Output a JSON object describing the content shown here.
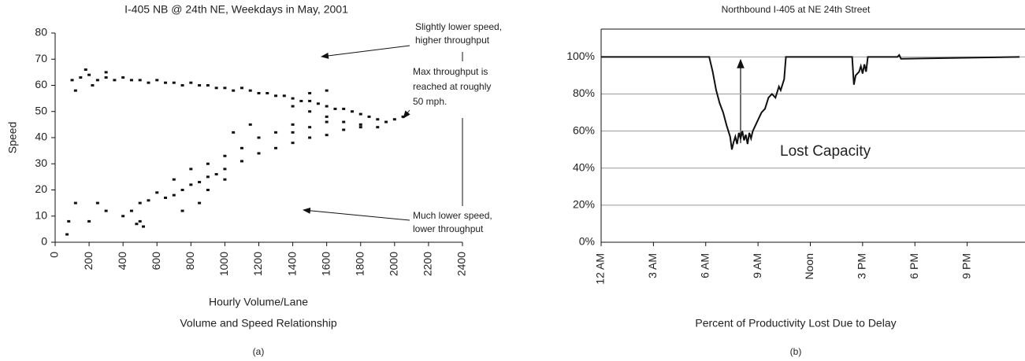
{
  "chart_data": [
    {
      "type": "scatter",
      "title": "I-405 NB @ 24th NE, Weekdays in May, 2001",
      "x_label": "Hourly Volume/Lane",
      "y_label": "Speed",
      "subtitle": "Volume and Speed Relationship",
      "caption": "(a)",
      "annotations": [
        "Slightly lower speed,",
        "higher throughput",
        "Max throughput is",
        "reached at roughly",
        "50 mph.",
        "Much lower speed,",
        "lower throughput"
      ],
      "color": "#111111",
      "xlim": [
        0,
        2400
      ],
      "ylim": [
        0,
        80
      ],
      "xticks": [
        0,
        200,
        400,
        600,
        800,
        1000,
        1200,
        1400,
        1600,
        1800,
        2000,
        2200,
        2400
      ],
      "yticks": [
        0,
        10,
        20,
        30,
        40,
        50,
        60,
        70,
        80
      ],
      "x": [
        100,
        150,
        200,
        250,
        300,
        350,
        400,
        450,
        500,
        550,
        600,
        650,
        700,
        750,
        800,
        850,
        900,
        950,
        1000,
        1050,
        1100,
        1150,
        1200,
        1250,
        1300,
        1350,
        1400,
        1450,
        1500,
        1550,
        1600,
        1650,
        1700,
        1750,
        1800,
        1850,
        1900,
        1950,
        2000,
        2050,
        120,
        180,
        220,
        300,
        1400,
        1500,
        1600,
        1700,
        1800,
        1900,
        1600,
        1500,
        1800,
        1700,
        1600,
        1500,
        1400,
        1300,
        1200,
        1100,
        1000,
        950,
        900,
        850,
        800,
        750,
        700,
        650,
        600,
        550,
        500,
        450,
        500,
        520,
        480,
        400,
        200,
        120,
        80,
        70,
        250,
        300,
        1200,
        1100,
        1000,
        900,
        1300,
        1400,
        800,
        700,
        1500,
        1000,
        850,
        750,
        1600,
        1400,
        900,
        1050,
        1150
      ],
      "y": [
        62,
        63,
        64,
        62,
        63,
        62,
        63,
        62,
        62,
        61,
        62,
        61,
        61,
        60,
        61,
        60,
        60,
        59,
        59,
        58,
        59,
        58,
        57,
        57,
        56,
        56,
        55,
        54,
        54,
        53,
        52,
        51,
        51,
        50,
        49,
        48,
        47,
        46,
        47,
        48,
        58,
        66,
        60,
        65,
        52,
        50,
        48,
        46,
        45,
        44,
        58,
        57,
        44,
        43,
        41,
        40,
        38,
        36,
        34,
        31,
        28,
        26,
        25,
        23,
        22,
        20,
        18,
        17,
        19,
        16,
        15,
        12,
        8,
        6,
        7,
        10,
        8,
        15,
        8,
        3,
        15,
        12,
        40,
        36,
        33,
        30,
        42,
        45,
        28,
        24,
        44,
        24,
        15,
        12,
        46,
        42,
        20,
        42,
        45
      ]
    },
    {
      "type": "line",
      "title": "Northbound I-405 at NE 24th Street",
      "subtitle": "Percent of Productivity Lost Due to Delay",
      "caption": "(b)",
      "annotation": "Lost Capacity",
      "color": "#111111",
      "grid": true,
      "xlim": [
        0,
        24
      ],
      "ylim": [
        0,
        115
      ],
      "xticks": [
        {
          "value": 0,
          "label": "12 AM"
        },
        {
          "value": 3,
          "label": "3 AM"
        },
        {
          "value": 6,
          "label": "6 AM"
        },
        {
          "value": 9,
          "label": "9 AM"
        },
        {
          "value": 12,
          "label": "Noon"
        },
        {
          "value": 15,
          "label": "3 PM"
        },
        {
          "value": 18,
          "label": "6 PM"
        },
        {
          "value": 21,
          "label": "9 PM"
        }
      ],
      "yticks": [
        {
          "value": 0,
          "label": "0%"
        },
        {
          "value": 20,
          "label": "20%"
        },
        {
          "value": 40,
          "label": "40%"
        },
        {
          "value": 60,
          "label": "60%"
        },
        {
          "value": 80,
          "label": "80%"
        },
        {
          "value": 100,
          "label": "100%"
        }
      ],
      "x": [
        0,
        6.2,
        6.4,
        6.6,
        6.8,
        7.0,
        7.2,
        7.4,
        7.5,
        7.6,
        7.7,
        7.8,
        7.9,
        8.0,
        8.1,
        8.2,
        8.3,
        8.4,
        8.5,
        8.6,
        8.7,
        8.8,
        9.0,
        9.2,
        9.4,
        9.6,
        9.8,
        10.0,
        10.2,
        10.3,
        10.4,
        10.5,
        10.6,
        14.4,
        14.5,
        14.6,
        14.8,
        14.9,
        15.0,
        15.1,
        15.2,
        15.3,
        17.0,
        17.1,
        17.2,
        24
      ],
      "y": [
        100,
        100,
        92,
        82,
        75,
        70,
        63,
        57,
        50,
        54,
        57,
        53,
        59,
        56,
        60,
        55,
        58,
        53,
        59,
        56,
        60,
        62,
        66,
        70,
        72,
        78,
        80,
        78,
        84,
        82,
        85,
        88,
        100,
        100,
        85,
        90,
        92,
        95,
        91,
        96,
        92,
        100,
        100,
        101,
        99,
        100
      ]
    }
  ]
}
